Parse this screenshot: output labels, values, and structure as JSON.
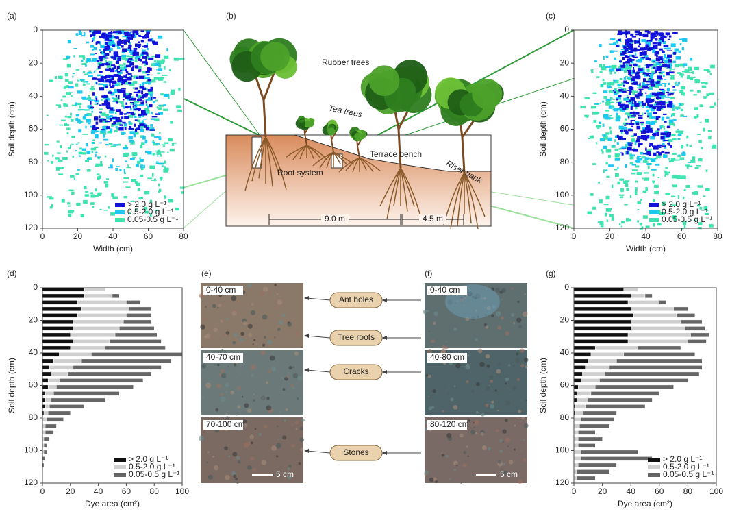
{
  "panel_labels": [
    "(a)",
    "(b)",
    "(c)",
    "(d)",
    "(e)",
    "(f)",
    "(g)"
  ],
  "chart_data": [
    {
      "type": "dye-map",
      "xlabel": "Width (cm)",
      "ylabel": "Soil depth (cm)",
      "xlim": [
        0,
        80
      ],
      "ylim": [
        0,
        120
      ],
      "xticks": [
        0,
        20,
        40,
        60,
        80
      ],
      "yticks": [
        0,
        20,
        40,
        60,
        80,
        100,
        120
      ],
      "series": [
        {
          "name": "> 2.0 g L⁻¹",
          "color": "#1212d8"
        },
        {
          "name": "0.5-2.0 g L⁻¹",
          "color": "#1ec8f0"
        },
        {
          "name": "0.05-0.5 g L⁻¹",
          "color": "#3fe3b0"
        }
      ]
    },
    {
      "type": "dye-map",
      "xlabel": "Width (cm)",
      "ylabel": "Soil depth (cm)",
      "xlim": [
        0,
        80
      ],
      "ylim": [
        0,
        120
      ],
      "xticks": [
        0,
        20,
        40,
        60,
        80
      ],
      "yticks": [
        0,
        20,
        40,
        60,
        80,
        100,
        120
      ],
      "series": [
        {
          "name": "> 2.0 g L⁻¹",
          "color": "#1212d8"
        },
        {
          "name": "0.5-2.0 g L⁻¹",
          "color": "#1ec8f0"
        },
        {
          "name": "0.05-0.5 g L⁻¹",
          "color": "#3fe3b0"
        }
      ]
    },
    {
      "type": "hbar-stacked",
      "xlabel": "Dye area (cm²)",
      "ylabel": "Soil depth (cm)",
      "xlim": [
        0,
        100
      ],
      "ylim": [
        0,
        120
      ],
      "xticks": [
        0,
        20,
        40,
        60,
        80,
        100
      ],
      "yticks": [
        0,
        20,
        40,
        60,
        80,
        100,
        120
      ],
      "y": [
        1,
        5,
        9,
        13,
        17,
        21,
        25,
        29,
        33,
        37,
        41,
        45,
        49,
        53,
        57,
        61,
        65,
        69,
        73,
        77,
        81,
        85,
        89,
        93,
        97,
        101,
        105,
        109
      ],
      "series": [
        {
          "name": "> 2.0 g L⁻¹",
          "color": "#111111",
          "values": [
            30,
            30,
            25,
            28,
            25,
            22,
            22,
            20,
            22,
            20,
            12,
            8,
            5,
            6,
            4,
            4,
            2,
            2,
            2,
            1,
            0,
            0,
            0,
            0,
            0,
            0,
            0,
            0
          ]
        },
        {
          "name": "0.5-2.0 g L⁻¹",
          "color": "#cfcfcf",
          "values": [
            15,
            20,
            35,
            34,
            35,
            36,
            33,
            32,
            26,
            25,
            23,
            20,
            17,
            12,
            8,
            6,
            6,
            4,
            3,
            3,
            3,
            2,
            2,
            1,
            1,
            1,
            0,
            0
          ]
        },
        {
          "name": "0.05-0.5 g L⁻¹",
          "color": "#666666",
          "values": [
            0,
            5,
            10,
            16,
            18,
            20,
            25,
            30,
            37,
            43,
            65,
            64,
            63,
            60,
            60,
            55,
            47,
            39,
            25,
            16,
            12,
            8,
            6,
            4,
            2,
            2,
            2,
            1
          ]
        }
      ]
    },
    {
      "type": "hbar-stacked",
      "xlabel": "Dye area (cm²)",
      "ylabel": "Soil depth (cm)",
      "xlim": [
        0,
        100
      ],
      "ylim": [
        0,
        120
      ],
      "xticks": [
        0,
        20,
        40,
        60,
        80,
        100
      ],
      "yticks": [
        0,
        20,
        40,
        60,
        80,
        100,
        120
      ],
      "y": [
        1,
        5,
        9,
        13,
        17,
        21,
        25,
        29,
        33,
        37,
        41,
        45,
        49,
        53,
        57,
        61,
        65,
        69,
        73,
        77,
        81,
        85,
        89,
        93,
        97,
        101,
        105,
        109,
        113,
        117
      ],
      "series": [
        {
          "name": "> 2.0 g L⁻¹",
          "color": "#111111",
          "values": [
            35,
            40,
            38,
            40,
            42,
            40,
            40,
            38,
            38,
            15,
            12,
            10,
            8,
            6,
            5,
            3,
            2,
            2,
            1,
            1,
            0,
            0,
            0,
            0,
            0,
            0,
            0,
            0,
            0,
            0
          ]
        },
        {
          "name": "0.5-2.0 g L⁻¹",
          "color": "#cfcfcf",
          "values": [
            10,
            10,
            22,
            30,
            30,
            35,
            38,
            44,
            42,
            30,
            23,
            20,
            17,
            16,
            13,
            12,
            10,
            8,
            7,
            5,
            5,
            4,
            3,
            3,
            3,
            5,
            5,
            3,
            2,
            2
          ]
        },
        {
          "name": "0.05-0.5 g L⁻¹",
          "color": "#666666",
          "values": [
            0,
            5,
            5,
            10,
            13,
            15,
            14,
            13,
            13,
            30,
            50,
            60,
            65,
            66,
            62,
            55,
            48,
            45,
            42,
            24,
            23,
            21,
            12,
            17,
            12,
            40,
            50,
            27,
            23,
            13
          ]
        }
      ]
    }
  ],
  "diagram": {
    "labels": [
      "Rubber trees",
      "Tea trees",
      "Terrace bench",
      "Riser bank",
      "Root system"
    ],
    "dimensions": [
      "9.0 m",
      "4.5 m"
    ]
  },
  "photos": [
    {
      "depths": [
        "0-40 cm",
        "40-70 cm",
        "70-100 cm"
      ],
      "scale": "5 cm"
    },
    {
      "depths": [
        "0-40 cm",
        "40-80 cm",
        "80-120 cm"
      ],
      "scale": "5 cm"
    }
  ],
  "features": [
    "Ant holes",
    "Tree roots",
    "Cracks",
    "Stones"
  ]
}
